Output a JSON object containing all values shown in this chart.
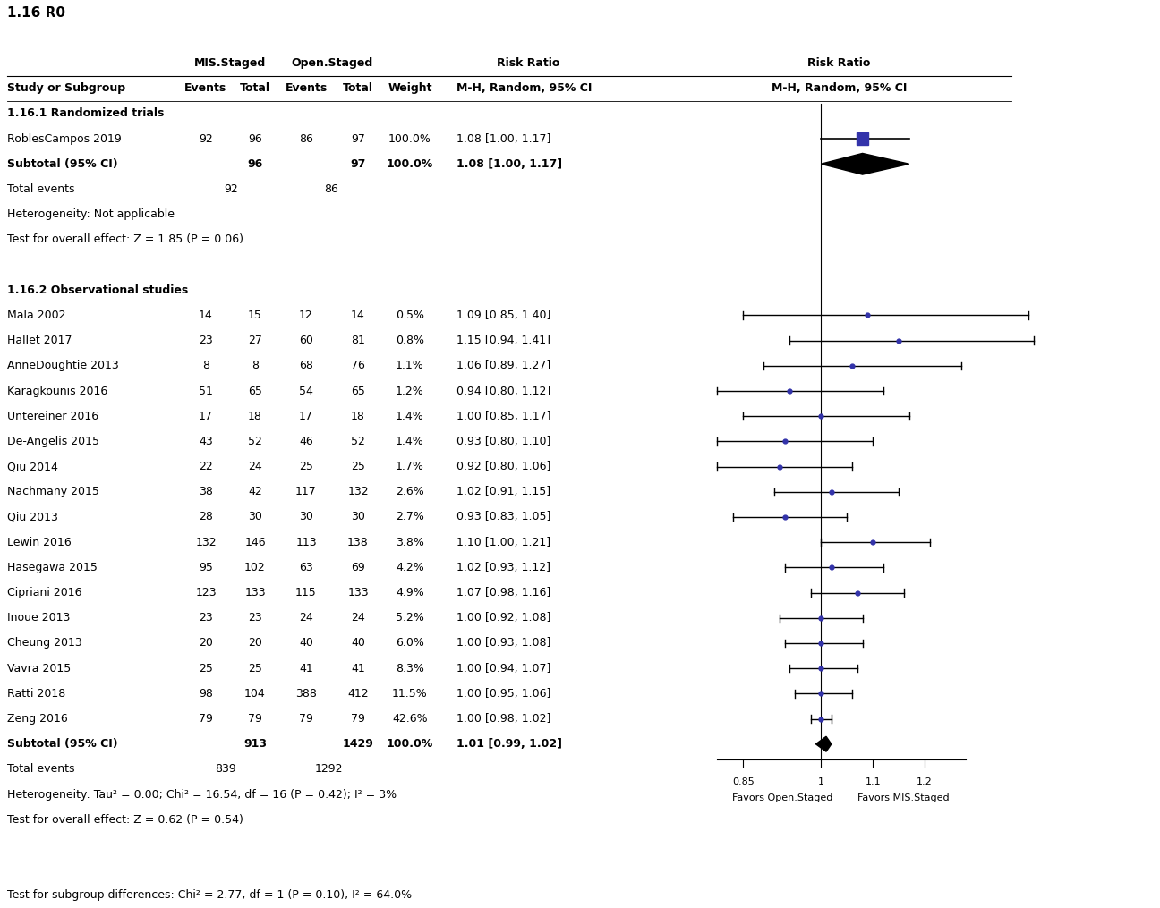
{
  "title": "1.16 R0",
  "section1_header": "1.16.1 Randomized trials",
  "section1_studies": [
    {
      "name": "RoblesCampos 2019",
      "mis_events": "92",
      "mis_total": "96",
      "open_events": "86",
      "open_total": "97",
      "weight": "100.0%",
      "rr": 1.08,
      "ci_low": 1.0,
      "ci_high": 1.17,
      "rr_text": "1.08 [1.00, 1.17]",
      "is_subtotal": false,
      "is_study": true
    },
    {
      "name": "Subtotal (95% CI)",
      "mis_events": "",
      "mis_total": "96",
      "open_events": "",
      "open_total": "97",
      "weight": "100.0%",
      "rr": 1.08,
      "ci_low": 1.0,
      "ci_high": 1.17,
      "rr_text": "1.08 [1.00, 1.17]",
      "is_subtotal": true,
      "is_study": false
    }
  ],
  "section2_header": "1.16.2 Observational studies",
  "section2_studies": [
    {
      "name": "Mala 2002",
      "mis_events": "14",
      "mis_total": "15",
      "open_events": "12",
      "open_total": "14",
      "weight": "0.5%",
      "rr": 1.09,
      "ci_low": 0.85,
      "ci_high": 1.4,
      "rr_text": "1.09 [0.85, 1.40]",
      "is_subtotal": false
    },
    {
      "name": "Hallet 2017",
      "mis_events": "23",
      "mis_total": "27",
      "open_events": "60",
      "open_total": "81",
      "weight": "0.8%",
      "rr": 1.15,
      "ci_low": 0.94,
      "ci_high": 1.41,
      "rr_text": "1.15 [0.94, 1.41]",
      "is_subtotal": false
    },
    {
      "name": "AnneDoughtie 2013",
      "mis_events": "8",
      "mis_total": "8",
      "open_events": "68",
      "open_total": "76",
      "weight": "1.1%",
      "rr": 1.06,
      "ci_low": 0.89,
      "ci_high": 1.27,
      "rr_text": "1.06 [0.89, 1.27]",
      "is_subtotal": false
    },
    {
      "name": "Karagkounis 2016",
      "mis_events": "51",
      "mis_total": "65",
      "open_events": "54",
      "open_total": "65",
      "weight": "1.2%",
      "rr": 0.94,
      "ci_low": 0.8,
      "ci_high": 1.12,
      "rr_text": "0.94 [0.80, 1.12]",
      "is_subtotal": false
    },
    {
      "name": "Untereiner 2016",
      "mis_events": "17",
      "mis_total": "18",
      "open_events": "17",
      "open_total": "18",
      "weight": "1.4%",
      "rr": 1.0,
      "ci_low": 0.85,
      "ci_high": 1.17,
      "rr_text": "1.00 [0.85, 1.17]",
      "is_subtotal": false
    },
    {
      "name": "De-Angelis 2015",
      "mis_events": "43",
      "mis_total": "52",
      "open_events": "46",
      "open_total": "52",
      "weight": "1.4%",
      "rr": 0.93,
      "ci_low": 0.8,
      "ci_high": 1.1,
      "rr_text": "0.93 [0.80, 1.10]",
      "is_subtotal": false
    },
    {
      "name": "Qiu 2014",
      "mis_events": "22",
      "mis_total": "24",
      "open_events": "25",
      "open_total": "25",
      "weight": "1.7%",
      "rr": 0.92,
      "ci_low": 0.8,
      "ci_high": 1.06,
      "rr_text": "0.92 [0.80, 1.06]",
      "is_subtotal": false
    },
    {
      "name": "Nachmany 2015",
      "mis_events": "38",
      "mis_total": "42",
      "open_events": "117",
      "open_total": "132",
      "weight": "2.6%",
      "rr": 1.02,
      "ci_low": 0.91,
      "ci_high": 1.15,
      "rr_text": "1.02 [0.91, 1.15]",
      "is_subtotal": false
    },
    {
      "name": "Qiu 2013",
      "mis_events": "28",
      "mis_total": "30",
      "open_events": "30",
      "open_total": "30",
      "weight": "2.7%",
      "rr": 0.93,
      "ci_low": 0.83,
      "ci_high": 1.05,
      "rr_text": "0.93 [0.83, 1.05]",
      "is_subtotal": false
    },
    {
      "name": "Lewin 2016",
      "mis_events": "132",
      "mis_total": "146",
      "open_events": "113",
      "open_total": "138",
      "weight": "3.8%",
      "rr": 1.1,
      "ci_low": 1.0,
      "ci_high": 1.21,
      "rr_text": "1.10 [1.00, 1.21]",
      "is_subtotal": false
    },
    {
      "name": "Hasegawa 2015",
      "mis_events": "95",
      "mis_total": "102",
      "open_events": "63",
      "open_total": "69",
      "weight": "4.2%",
      "rr": 1.02,
      "ci_low": 0.93,
      "ci_high": 1.12,
      "rr_text": "1.02 [0.93, 1.12]",
      "is_subtotal": false
    },
    {
      "name": "Cipriani 2016",
      "mis_events": "123",
      "mis_total": "133",
      "open_events": "115",
      "open_total": "133",
      "weight": "4.9%",
      "rr": 1.07,
      "ci_low": 0.98,
      "ci_high": 1.16,
      "rr_text": "1.07 [0.98, 1.16]",
      "is_subtotal": false
    },
    {
      "name": "Inoue 2013",
      "mis_events": "23",
      "mis_total": "23",
      "open_events": "24",
      "open_total": "24",
      "weight": "5.2%",
      "rr": 1.0,
      "ci_low": 0.92,
      "ci_high": 1.08,
      "rr_text": "1.00 [0.92, 1.08]",
      "is_subtotal": false
    },
    {
      "name": "Cheung 2013",
      "mis_events": "20",
      "mis_total": "20",
      "open_events": "40",
      "open_total": "40",
      "weight": "6.0%",
      "rr": 1.0,
      "ci_low": 0.93,
      "ci_high": 1.08,
      "rr_text": "1.00 [0.93, 1.08]",
      "is_subtotal": false
    },
    {
      "name": "Vavra 2015",
      "mis_events": "25",
      "mis_total": "25",
      "open_events": "41",
      "open_total": "41",
      "weight": "8.3%",
      "rr": 1.0,
      "ci_low": 0.94,
      "ci_high": 1.07,
      "rr_text": "1.00 [0.94, 1.07]",
      "is_subtotal": false
    },
    {
      "name": "Ratti 2018",
      "mis_events": "98",
      "mis_total": "104",
      "open_events": "388",
      "open_total": "412",
      "weight": "11.5%",
      "rr": 1.0,
      "ci_low": 0.95,
      "ci_high": 1.06,
      "rr_text": "1.00 [0.95, 1.06]",
      "is_subtotal": false
    },
    {
      "name": "Zeng 2016",
      "mis_events": "79",
      "mis_total": "79",
      "open_events": "79",
      "open_total": "79",
      "weight": "42.6%",
      "rr": 1.0,
      "ci_low": 0.98,
      "ci_high": 1.02,
      "rr_text": "1.00 [0.98, 1.02]",
      "is_subtotal": false
    },
    {
      "name": "Subtotal (95% CI)",
      "mis_events": "",
      "mis_total": "913",
      "open_events": "",
      "open_total": "1429",
      "weight": "100.0%",
      "rr": 1.01,
      "ci_low": 0.99,
      "ci_high": 1.02,
      "rr_text": "1.01 [0.99, 1.02]",
      "is_subtotal": true
    }
  ],
  "xmin": 0.72,
  "xmax": 1.35,
  "xplot_min": 0.8,
  "xplot_max": 1.28,
  "xticks": [
    0.85,
    1.0,
    1.1,
    1.2
  ],
  "xtick_labels": [
    "0.85",
    "1",
    "1.1",
    "1.2"
  ],
  "xlabel_left": "Favors Open.Staged",
  "xlabel_right": "Favors MIS.Staged",
  "blue": "#3333aa",
  "black": "#000000"
}
